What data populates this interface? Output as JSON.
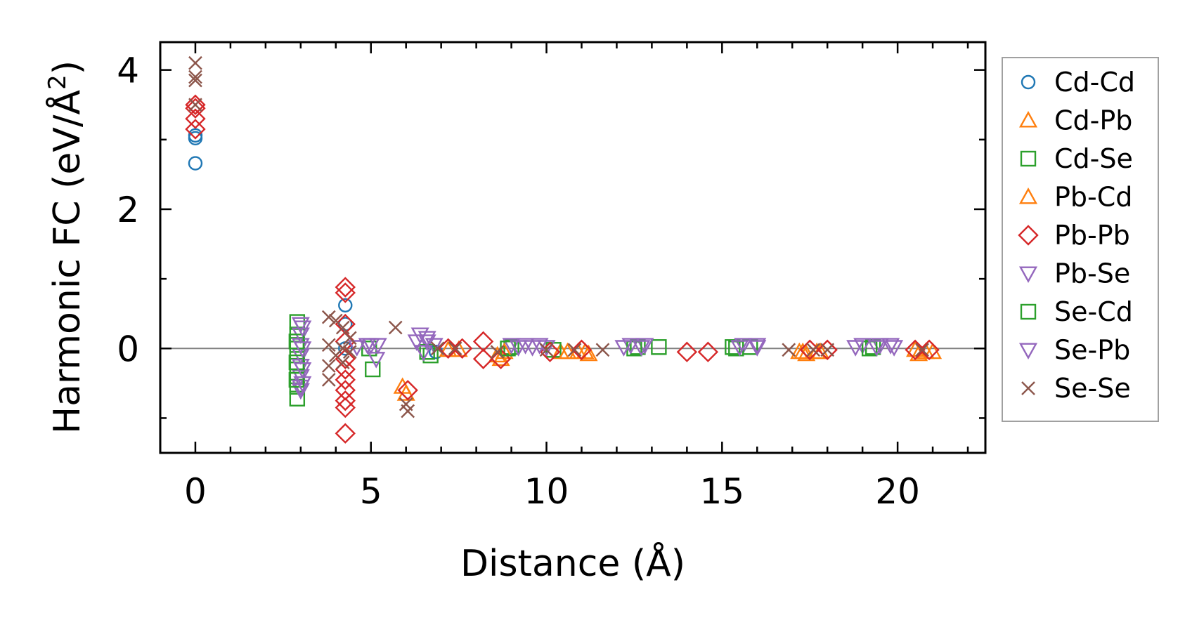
{
  "chart_data": {
    "type": "scatter",
    "title": "",
    "xlabel": "Distance (Å)",
    "ylabel_main": "Harmonic FC (eV/Å",
    "ylabel_sup": "2",
    "ylabel_close": ")",
    "xlim": [
      -1,
      22.5
    ],
    "ylim": [
      -1.5,
      4.4
    ],
    "x_ticks": [
      0,
      5,
      10,
      15,
      20
    ],
    "x_tick_labels": [
      "0",
      "5",
      "10",
      "15",
      "20"
    ],
    "y_ticks": [
      0,
      2,
      4
    ],
    "y_tick_labels": [
      "0",
      "2",
      "4"
    ],
    "x_minor_ticks": [
      1,
      2,
      3,
      4,
      6,
      7,
      8,
      9,
      11,
      12,
      13,
      14,
      16,
      17,
      18,
      19,
      21,
      22
    ],
    "y_minor_ticks": [
      -1,
      1,
      3
    ],
    "zero_line": 0,
    "grid": false,
    "legend_position": "outside-right",
    "series": [
      {
        "name": "Cd-Cd",
        "marker": "circle",
        "color": "#1f77b4",
        "points": [
          [
            0,
            2.66
          ],
          [
            0,
            3.02
          ],
          [
            0,
            3.06
          ],
          [
            4.27,
            0.62
          ],
          [
            4.27,
            0.35
          ],
          [
            4.27,
            0.0
          ],
          [
            6.85,
            -0.05
          ]
        ]
      },
      {
        "name": "Cd-Pb",
        "marker": "triangle-up",
        "color": "#ff7f0e",
        "points": [
          [
            5.9,
            -0.55
          ],
          [
            6.0,
            -0.65
          ],
          [
            8.6,
            -0.1
          ],
          [
            8.7,
            -0.15
          ],
          [
            10.4,
            -0.05
          ],
          [
            10.9,
            -0.05
          ],
          [
            11.2,
            -0.08
          ],
          [
            17.2,
            -0.05
          ],
          [
            17.4,
            -0.08
          ],
          [
            17.7,
            -0.05
          ],
          [
            20.6,
            -0.08
          ],
          [
            21.0,
            -0.05
          ]
        ]
      },
      {
        "name": "Cd-Se",
        "marker": "square",
        "color": "#2ca02c",
        "points": [
          [
            2.9,
            0.38
          ],
          [
            2.9,
            0.2
          ],
          [
            2.9,
            0.05
          ],
          [
            2.9,
            -0.1
          ],
          [
            2.9,
            -0.25
          ],
          [
            2.9,
            -0.4
          ],
          [
            2.9,
            -0.55
          ],
          [
            2.9,
            -0.72
          ],
          [
            4.95,
            0.0
          ],
          [
            5.05,
            -0.3
          ],
          [
            6.7,
            -0.1
          ],
          [
            9.0,
            0.02
          ],
          [
            10.2,
            -0.02
          ],
          [
            12.6,
            0.02
          ],
          [
            13.2,
            0.02
          ],
          [
            15.3,
            0.02
          ],
          [
            15.8,
            0.02
          ],
          [
            19.3,
            0.02
          ]
        ]
      },
      {
        "name": "Pb-Cd",
        "marker": "triangle-up",
        "color": "#ff7f0e",
        "points": [
          [
            7.2,
            -0.02
          ],
          [
            7.5,
            -0.02
          ],
          [
            8.8,
            -0.05
          ],
          [
            10.6,
            -0.05
          ],
          [
            11.1,
            -0.05
          ],
          [
            17.3,
            -0.05
          ],
          [
            17.8,
            -0.05
          ],
          [
            20.5,
            -0.02
          ],
          [
            20.8,
            -0.05
          ]
        ]
      },
      {
        "name": "Pb-Pb",
        "marker": "diamond",
        "color": "#d62728",
        "points": [
          [
            0,
            3.5
          ],
          [
            0,
            3.45
          ],
          [
            0,
            3.3
          ],
          [
            0,
            3.15
          ],
          [
            4.27,
            0.88
          ],
          [
            4.27,
            0.8
          ],
          [
            4.27,
            0.35
          ],
          [
            4.27,
            0.1
          ],
          [
            4.27,
            -0.15
          ],
          [
            4.27,
            -0.3
          ],
          [
            4.27,
            -0.45
          ],
          [
            4.27,
            -0.6
          ],
          [
            4.27,
            -0.75
          ],
          [
            4.27,
            -0.85
          ],
          [
            4.27,
            -1.22
          ],
          [
            6.05,
            -0.6
          ],
          [
            7.2,
            0.0
          ],
          [
            7.6,
            0.0
          ],
          [
            8.2,
            0.1
          ],
          [
            8.2,
            -0.15
          ],
          [
            8.7,
            -0.15
          ],
          [
            10.1,
            -0.05
          ],
          [
            11.0,
            -0.02
          ],
          [
            14.0,
            -0.05
          ],
          [
            14.6,
            -0.05
          ],
          [
            17.5,
            -0.02
          ],
          [
            18.0,
            -0.02
          ],
          [
            20.5,
            -0.02
          ],
          [
            20.9,
            -0.02
          ]
        ]
      },
      {
        "name": "Pb-Se",
        "marker": "triangle-down",
        "color": "#9467bd",
        "points": [
          [
            3.0,
            0.35
          ],
          [
            3.0,
            0.2
          ],
          [
            3.0,
            0.05
          ],
          [
            3.0,
            -0.1
          ],
          [
            3.0,
            -0.25
          ],
          [
            3.0,
            -0.4
          ],
          [
            3.0,
            -0.55
          ],
          [
            3.0,
            -0.6
          ],
          [
            4.9,
            0.05
          ],
          [
            5.2,
            0.05
          ],
          [
            6.4,
            0.2
          ],
          [
            6.6,
            0.1
          ],
          [
            6.8,
            0.05
          ],
          [
            9.0,
            0.05
          ],
          [
            9.4,
            0.05
          ],
          [
            9.8,
            0.05
          ],
          [
            12.4,
            0.05
          ],
          [
            12.8,
            0.05
          ],
          [
            15.6,
            0.05
          ],
          [
            16.0,
            0.05
          ],
          [
            19.0,
            0.05
          ],
          [
            19.5,
            0.05
          ],
          [
            19.8,
            0.05
          ]
        ]
      },
      {
        "name": "Se-Cd",
        "marker": "square",
        "color": "#2ca02c",
        "points": [
          [
            2.88,
            0.1
          ],
          [
            2.88,
            -0.2
          ],
          [
            2.88,
            -0.45
          ],
          [
            6.6,
            -0.05
          ],
          [
            8.9,
            0.0
          ],
          [
            12.5,
            0.0
          ],
          [
            15.4,
            0.0
          ],
          [
            19.2,
            0.0
          ]
        ]
      },
      {
        "name": "Se-Pb",
        "marker": "triangle-down",
        "color": "#9467bd",
        "points": [
          [
            3.05,
            0.3
          ],
          [
            3.05,
            0.0
          ],
          [
            3.05,
            -0.3
          ],
          [
            3.05,
            -0.5
          ],
          [
            4.6,
            0.02
          ],
          [
            5.0,
            0.05
          ],
          [
            5.15,
            -0.15
          ],
          [
            6.3,
            0.1
          ],
          [
            6.5,
            -0.05
          ],
          [
            6.6,
            0.15
          ],
          [
            9.2,
            0.02
          ],
          [
            9.6,
            0.02
          ],
          [
            10.0,
            0.02
          ],
          [
            12.2,
            0.02
          ],
          [
            12.7,
            0.02
          ],
          [
            15.5,
            0.02
          ],
          [
            16.0,
            0.02
          ],
          [
            18.8,
            0.02
          ],
          [
            19.4,
            0.02
          ],
          [
            19.9,
            0.02
          ]
        ]
      },
      {
        "name": "Se-Se",
        "marker": "x",
        "color": "#8c564b",
        "points": [
          [
            0,
            4.1
          ],
          [
            0,
            3.9
          ],
          [
            0,
            3.85
          ],
          [
            0,
            3.5
          ],
          [
            3.8,
            0.45
          ],
          [
            3.8,
            0.05
          ],
          [
            3.8,
            -0.25
          ],
          [
            3.8,
            -0.45
          ],
          [
            4.0,
            0.4
          ],
          [
            4.0,
            -0.1
          ],
          [
            4.2,
            0.3
          ],
          [
            4.2,
            0.0
          ],
          [
            4.2,
            -0.2
          ],
          [
            4.4,
            0.15
          ],
          [
            4.4,
            -0.05
          ],
          [
            5.7,
            0.3
          ],
          [
            6.0,
            -0.8
          ],
          [
            6.05,
            -0.9
          ],
          [
            6.9,
            0.0
          ],
          [
            7.4,
            0.0
          ],
          [
            8.6,
            -0.05
          ],
          [
            10.0,
            -0.02
          ],
          [
            10.8,
            -0.02
          ],
          [
            11.6,
            -0.02
          ],
          [
            16.9,
            -0.02
          ],
          [
            17.6,
            -0.02
          ],
          [
            18.0,
            -0.02
          ],
          [
            20.7,
            -0.02
          ]
        ]
      }
    ]
  }
}
